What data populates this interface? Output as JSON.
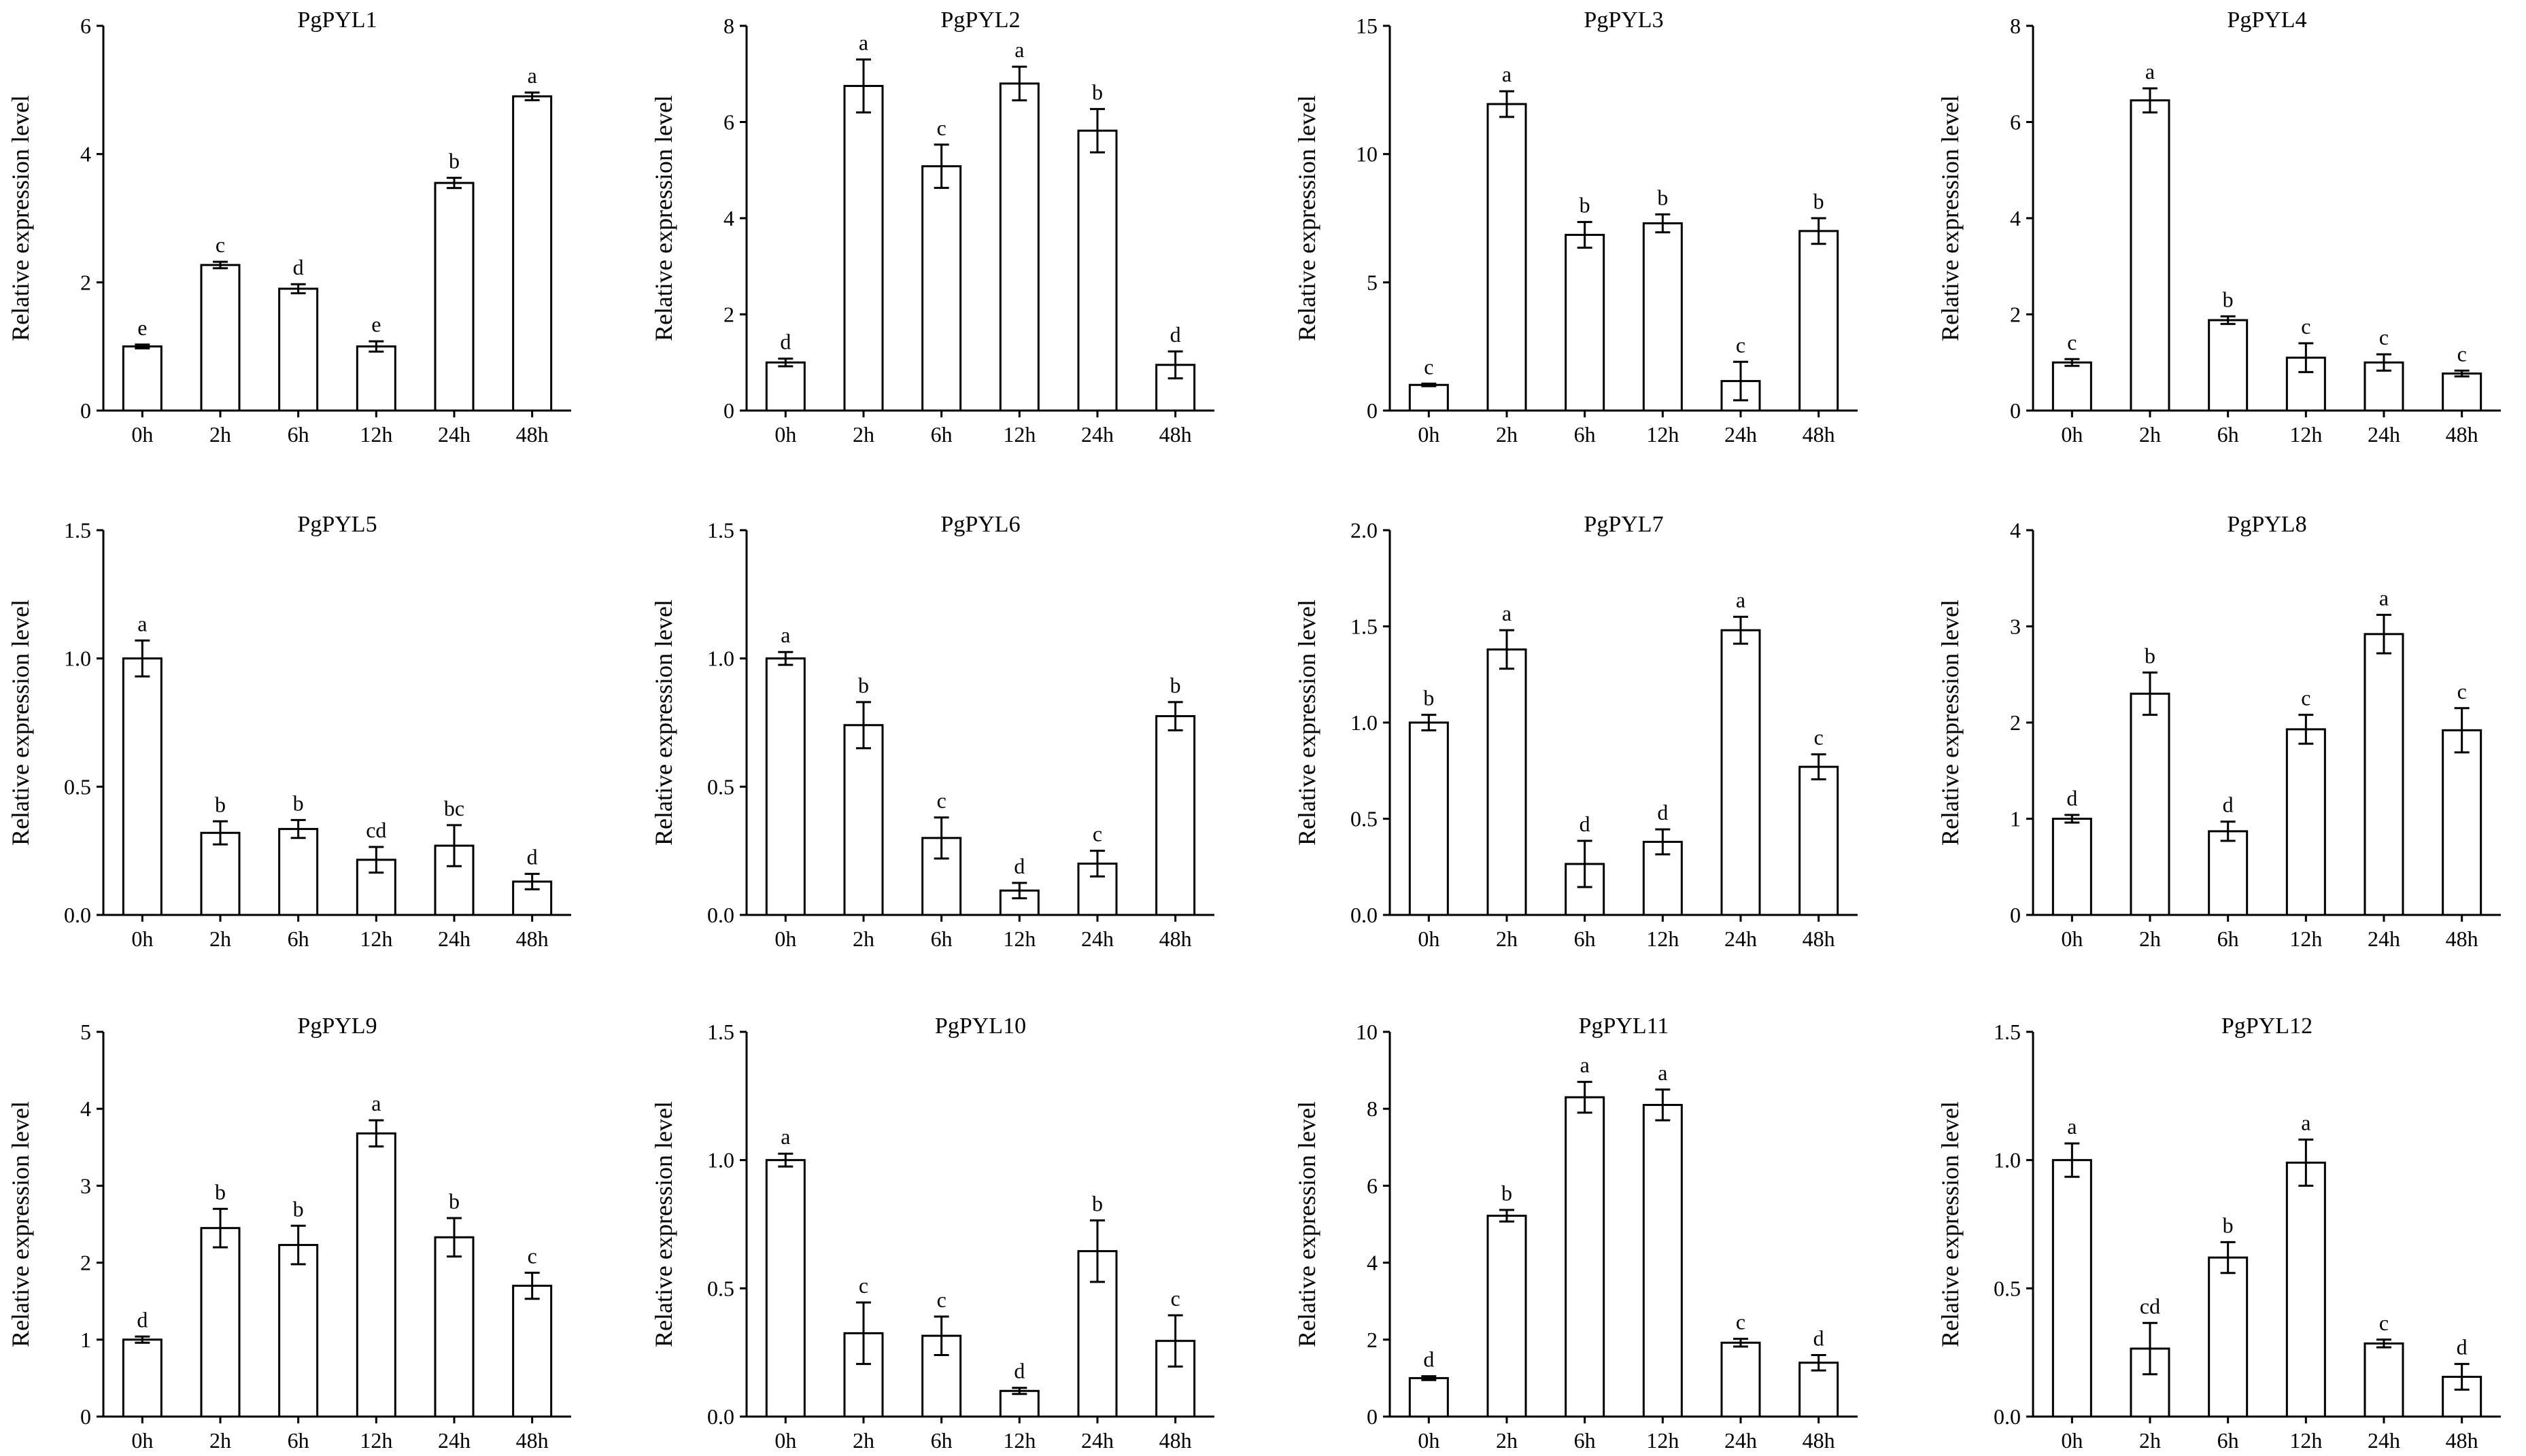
{
  "chart_data": [
    {
      "type": "bar",
      "title": "PgPYL1",
      "ylabel": "Relative expression level",
      "categories": [
        "0h",
        "2h",
        "6h",
        "12h",
        "24h",
        "48h"
      ],
      "values": [
        1.0,
        2.27,
        1.9,
        1.0,
        3.55,
        4.9
      ],
      "errors": [
        0.03,
        0.05,
        0.07,
        0.08,
        0.08,
        0.06
      ],
      "significance": [
        "e",
        "c",
        "d",
        "e",
        "b",
        "a"
      ],
      "ylim": [
        0,
        6
      ],
      "yticks": [
        "0",
        "2",
        "4",
        "6"
      ]
    },
    {
      "type": "bar",
      "title": "PgPYL2",
      "ylabel": "Relative expression level",
      "categories": [
        "0h",
        "2h",
        "6h",
        "12h",
        "24h",
        "48h"
      ],
      "values": [
        1.0,
        6.75,
        5.08,
        6.8,
        5.82,
        0.95
      ],
      "errors": [
        0.08,
        0.55,
        0.45,
        0.35,
        0.45,
        0.28
      ],
      "significance": [
        "d",
        "a",
        "c",
        "a",
        "b",
        "d"
      ],
      "ylim": [
        0,
        8
      ],
      "yticks": [
        "0",
        "2",
        "4",
        "6",
        "8"
      ]
    },
    {
      "type": "bar",
      "title": "PgPYL3",
      "ylabel": "Relative expression level",
      "categories": [
        "0h",
        "2h",
        "6h",
        "12h",
        "24h",
        "48h"
      ],
      "values": [
        1.0,
        11.95,
        6.85,
        7.3,
        1.15,
        7.0
      ],
      "errors": [
        0.05,
        0.5,
        0.5,
        0.35,
        0.75,
        0.5
      ],
      "significance": [
        "c",
        "a",
        "b",
        "b",
        "c",
        "b"
      ],
      "ylim": [
        0,
        15
      ],
      "yticks": [
        "0",
        "5",
        "10",
        "15"
      ]
    },
    {
      "type": "bar",
      "title": "PgPYL4",
      "ylabel": "Relative expression level",
      "categories": [
        "0h",
        "2h",
        "6h",
        "12h",
        "24h",
        "48h"
      ],
      "values": [
        1.0,
        6.45,
        1.88,
        1.1,
        1.0,
        0.77
      ],
      "errors": [
        0.07,
        0.25,
        0.08,
        0.3,
        0.17,
        0.06
      ],
      "significance": [
        "c",
        "a",
        "b",
        "c",
        "c",
        "c"
      ],
      "ylim": [
        0,
        8
      ],
      "yticks": [
        "0",
        "2",
        "4",
        "6",
        "8"
      ]
    },
    {
      "type": "bar",
      "title": "PgPYL5",
      "ylabel": "Relative expression level",
      "categories": [
        "0h",
        "2h",
        "6h",
        "12h",
        "24h",
        "48h"
      ],
      "values": [
        1.0,
        0.32,
        0.335,
        0.215,
        0.27,
        0.13
      ],
      "errors": [
        0.07,
        0.045,
        0.035,
        0.05,
        0.08,
        0.03
      ],
      "significance": [
        "a",
        "b",
        "b",
        "cd",
        "bc",
        "d"
      ],
      "ylim": [
        0,
        1.5
      ],
      "yticks": [
        "0.0",
        "0.5",
        "1.0",
        "1.5"
      ]
    },
    {
      "type": "bar",
      "title": "PgPYL6",
      "ylabel": "Relative expression level",
      "categories": [
        "0h",
        "2h",
        "6h",
        "12h",
        "24h",
        "48h"
      ],
      "values": [
        1.0,
        0.74,
        0.3,
        0.095,
        0.2,
        0.775
      ],
      "errors": [
        0.025,
        0.09,
        0.08,
        0.03,
        0.05,
        0.055
      ],
      "significance": [
        "a",
        "b",
        "c",
        "d",
        "c",
        "b"
      ],
      "ylim": [
        0,
        1.5
      ],
      "yticks": [
        "0.0",
        "0.5",
        "1.0",
        "1.5"
      ]
    },
    {
      "type": "bar",
      "title": "PgPYL7",
      "ylabel": "Relative expression level",
      "categories": [
        "0h",
        "2h",
        "6h",
        "12h",
        "24h",
        "48h"
      ],
      "values": [
        1.0,
        1.38,
        0.265,
        0.38,
        1.48,
        0.77
      ],
      "errors": [
        0.04,
        0.1,
        0.12,
        0.065,
        0.07,
        0.065
      ],
      "significance": [
        "b",
        "a",
        "d",
        "d",
        "a",
        "c"
      ],
      "ylim": [
        0,
        2.0
      ],
      "yticks": [
        "0.0",
        "0.5",
        "1.0",
        "1.5",
        "2.0"
      ]
    },
    {
      "type": "bar",
      "title": "PgPYL8",
      "ylabel": "Relative expression level",
      "categories": [
        "0h",
        "2h",
        "6h",
        "12h",
        "24h",
        "48h"
      ],
      "values": [
        1.0,
        2.3,
        0.87,
        1.93,
        2.92,
        1.92
      ],
      "errors": [
        0.04,
        0.22,
        0.1,
        0.15,
        0.2,
        0.23
      ],
      "significance": [
        "d",
        "b",
        "d",
        "c",
        "a",
        "c"
      ],
      "ylim": [
        0,
        4
      ],
      "yticks": [
        "0",
        "1",
        "2",
        "3",
        "4"
      ]
    },
    {
      "type": "bar",
      "title": "PgPYL9",
      "ylabel": "Relative expression level",
      "categories": [
        "0h",
        "2h",
        "6h",
        "12h",
        "24h",
        "48h"
      ],
      "values": [
        1.0,
        2.45,
        2.23,
        3.68,
        2.33,
        1.7
      ],
      "errors": [
        0.04,
        0.25,
        0.25,
        0.17,
        0.25,
        0.17
      ],
      "significance": [
        "d",
        "b",
        "b",
        "a",
        "b",
        "c"
      ],
      "ylim": [
        0,
        5
      ],
      "yticks": [
        "0",
        "1",
        "2",
        "3",
        "4",
        "5"
      ]
    },
    {
      "type": "bar",
      "title": "PgPYL10",
      "ylabel": "Relative expression level",
      "categories": [
        "0h",
        "2h",
        "6h",
        "12h",
        "24h",
        "48h"
      ],
      "values": [
        1.0,
        0.325,
        0.315,
        0.1,
        0.645,
        0.295
      ],
      "errors": [
        0.025,
        0.12,
        0.075,
        0.012,
        0.12,
        0.1
      ],
      "significance": [
        "a",
        "c",
        "c",
        "d",
        "b",
        "c"
      ],
      "ylim": [
        0,
        1.5
      ],
      "yticks": [
        "0.0",
        "0.5",
        "1.0",
        "1.5"
      ]
    },
    {
      "type": "bar",
      "title": "PgPYL11",
      "ylabel": "Relative expression level",
      "categories": [
        "0h",
        "2h",
        "6h",
        "12h",
        "24h",
        "48h"
      ],
      "values": [
        1.0,
        5.22,
        8.3,
        8.1,
        1.92,
        1.4
      ],
      "errors": [
        0.05,
        0.15,
        0.4,
        0.4,
        0.1,
        0.2
      ],
      "significance": [
        "d",
        "b",
        "a",
        "a",
        "c",
        "d"
      ],
      "ylim": [
        0,
        10
      ],
      "yticks": [
        "0",
        "2",
        "4",
        "6",
        "8",
        "10"
      ]
    },
    {
      "type": "bar",
      "title": "PgPYL12",
      "ylabel": "Relative expression level",
      "categories": [
        "0h",
        "2h",
        "6h",
        "12h",
        "24h",
        "48h"
      ],
      "values": [
        1.0,
        0.265,
        0.62,
        0.99,
        0.285,
        0.155
      ],
      "errors": [
        0.065,
        0.1,
        0.06,
        0.09,
        0.015,
        0.05
      ],
      "significance": [
        "a",
        "cd",
        "b",
        "a",
        "c",
        "d"
      ],
      "ylim": [
        0,
        1.5
      ],
      "yticks": [
        "0.0",
        "0.5",
        "1.0",
        "1.5"
      ]
    }
  ]
}
